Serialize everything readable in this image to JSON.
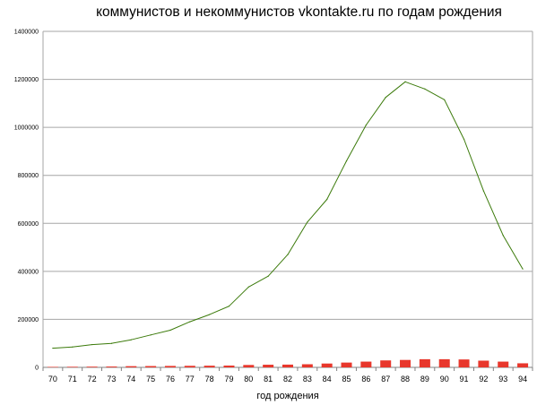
{
  "chart_data": {
    "type": "bar+line",
    "title": "коммунистов и некоммунистов vkontakte.ru по годам рождения",
    "xlabel": "год рождения",
    "ylabel": "",
    "categories": [
      "70",
      "71",
      "72",
      "73",
      "74",
      "75",
      "76",
      "77",
      "78",
      "79",
      "80",
      "81",
      "82",
      "83",
      "84",
      "85",
      "86",
      "87",
      "88",
      "89",
      "90",
      "91",
      "92",
      "93",
      "94"
    ],
    "y_tick_labels": [
      "0",
      "200000",
      "400000",
      "600000",
      "800000",
      "1000000",
      "1200000",
      "1400000"
    ],
    "ylim": [
      0,
      1400000
    ],
    "grid": true,
    "legend": "none",
    "series": [
      {
        "kind": "bar",
        "color": "#e8372c",
        "values": [
          2000,
          2500,
          3000,
          3500,
          5000,
          5500,
          6000,
          6500,
          7000,
          7500,
          10000,
          11000,
          11500,
          13000,
          16000,
          20000,
          24000,
          29000,
          31000,
          34000,
          34000,
          33000,
          28000,
          24000,
          17000
        ]
      },
      {
        "kind": "line",
        "color": "#3b7a0a",
        "values": [
          80000,
          85000,
          95000,
          100000,
          115000,
          135000,
          155000,
          190000,
          220000,
          255000,
          335000,
          380000,
          470000,
          605000,
          700000,
          860000,
          1010000,
          1125000,
          1190000,
          1160000,
          1115000,
          950000,
          735000,
          550000,
          410000
        ]
      }
    ]
  }
}
